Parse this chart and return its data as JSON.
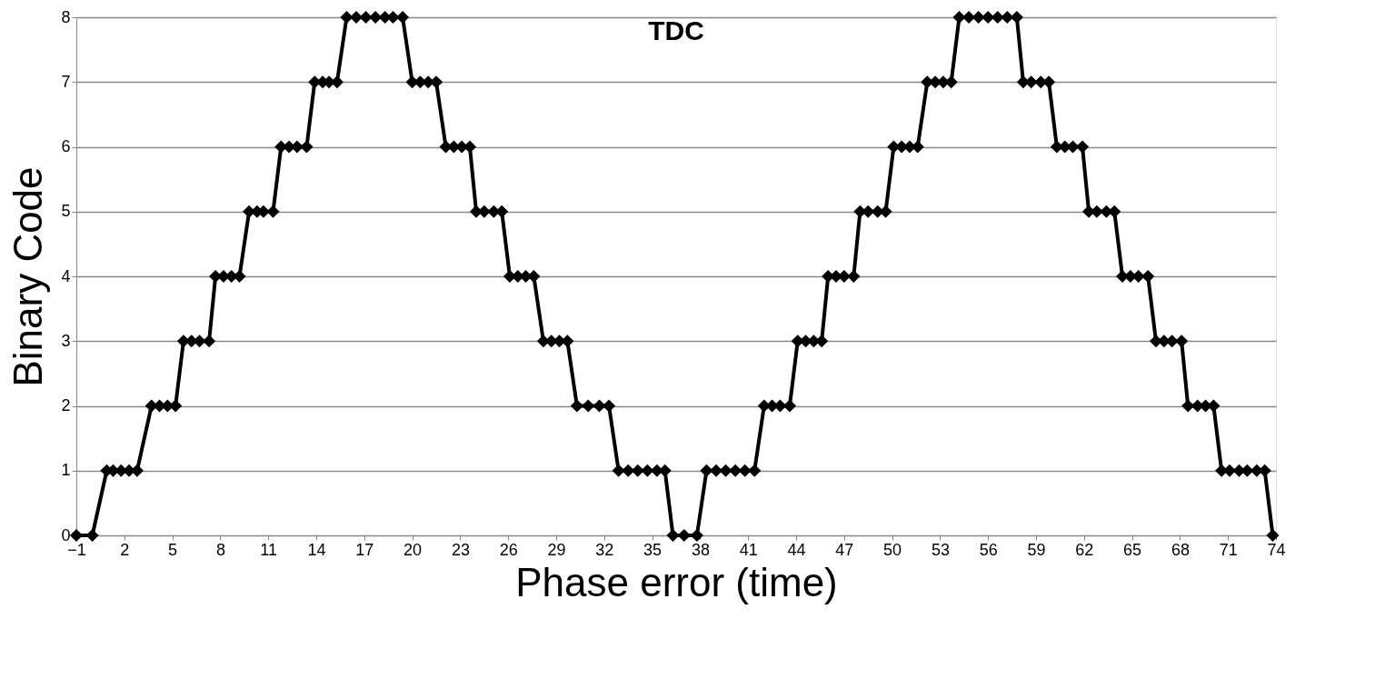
{
  "chart_data": {
    "type": "line",
    "title": "TDC",
    "xlabel": "Phase error (time)",
    "ylabel": "Binary Code",
    "series": [
      {
        "color": "#000000",
        "x": [
          -1.0,
          0.0,
          0.9,
          1.3,
          1.8,
          2.3,
          2.8,
          3.7,
          4.2,
          4.7,
          5.2,
          5.7,
          6.2,
          6.7,
          7.3,
          7.7,
          8.2,
          8.7,
          9.2,
          9.8,
          10.3,
          10.7,
          11.3,
          11.8,
          12.3,
          12.8,
          13.4,
          13.9,
          14.4,
          14.8,
          15.3,
          15.9,
          16.5,
          17.1,
          17.7,
          18.3,
          18.8,
          19.4,
          20.0,
          20.5,
          21.0,
          21.5,
          22.1,
          22.6,
          23.1,
          23.6,
          24.0,
          24.5,
          25.1,
          25.6,
          26.1,
          26.6,
          27.1,
          27.6,
          28.2,
          28.7,
          29.2,
          29.7,
          30.3,
          31.0,
          31.7,
          32.3,
          32.9,
          33.5,
          34.1,
          34.7,
          35.3,
          35.8,
          36.3,
          37.0,
          37.8,
          38.4,
          39.0,
          39.6,
          40.2,
          40.8,
          41.4,
          42.0,
          42.5,
          43.0,
          43.6,
          44.1,
          44.6,
          45.1,
          45.6,
          46.0,
          46.5,
          47.0,
          47.6,
          48.0,
          48.5,
          49.1,
          49.6,
          50.1,
          50.6,
          51.1,
          51.6,
          52.2,
          52.7,
          53.2,
          53.7,
          54.2,
          54.8,
          55.4,
          56.0,
          56.6,
          57.2,
          57.8,
          58.2,
          58.7,
          59.3,
          59.8,
          60.3,
          60.8,
          61.3,
          61.9,
          62.3,
          62.8,
          63.4,
          63.9,
          64.4,
          64.9,
          65.4,
          66.0,
          66.5,
          67.0,
          67.5,
          68.1,
          68.5,
          69.1,
          69.6,
          70.1,
          70.6,
          71.1,
          71.7,
          72.2,
          72.8,
          73.3,
          73.8
        ],
        "values": [
          0,
          0,
          1,
          1,
          1,
          1,
          1,
          2,
          2,
          2,
          2,
          3,
          3,
          3,
          3,
          4,
          4,
          4,
          4,
          5,
          5,
          5,
          5,
          6,
          6,
          6,
          6,
          7,
          7,
          7,
          7,
          8,
          8,
          8,
          8,
          8,
          8,
          8,
          7,
          7,
          7,
          7,
          6,
          6,
          6,
          6,
          5,
          5,
          5,
          5,
          4,
          4,
          4,
          4,
          3,
          3,
          3,
          3,
          2,
          2,
          2,
          2,
          1,
          1,
          1,
          1,
          1,
          1,
          0,
          0,
          0,
          1,
          1,
          1,
          1,
          1,
          1,
          2,
          2,
          2,
          2,
          3,
          3,
          3,
          3,
          4,
          4,
          4,
          4,
          5,
          5,
          5,
          5,
          6,
          6,
          6,
          6,
          7,
          7,
          7,
          7,
          8,
          8,
          8,
          8,
          8,
          8,
          8,
          7,
          7,
          7,
          7,
          6,
          6,
          6,
          6,
          5,
          5,
          5,
          5,
          4,
          4,
          4,
          4,
          3,
          3,
          3,
          3,
          2,
          2,
          2,
          2,
          1,
          1,
          1,
          1,
          1,
          1,
          0
        ]
      }
    ],
    "xlim": [
      -1,
      74
    ],
    "xticks": [
      -1,
      2,
      5,
      8,
      11,
      14,
      17,
      20,
      23,
      26,
      29,
      32,
      35,
      38,
      41,
      44,
      47,
      50,
      53,
      56,
      59,
      62,
      65,
      68,
      71,
      74
    ],
    "ylim": [
      0,
      8
    ],
    "yticks": [
      0,
      1,
      2,
      3,
      4,
      5,
      6,
      7,
      8
    ],
    "grid": "y",
    "legend": false,
    "marker": "diamond",
    "line_style": "solid"
  }
}
